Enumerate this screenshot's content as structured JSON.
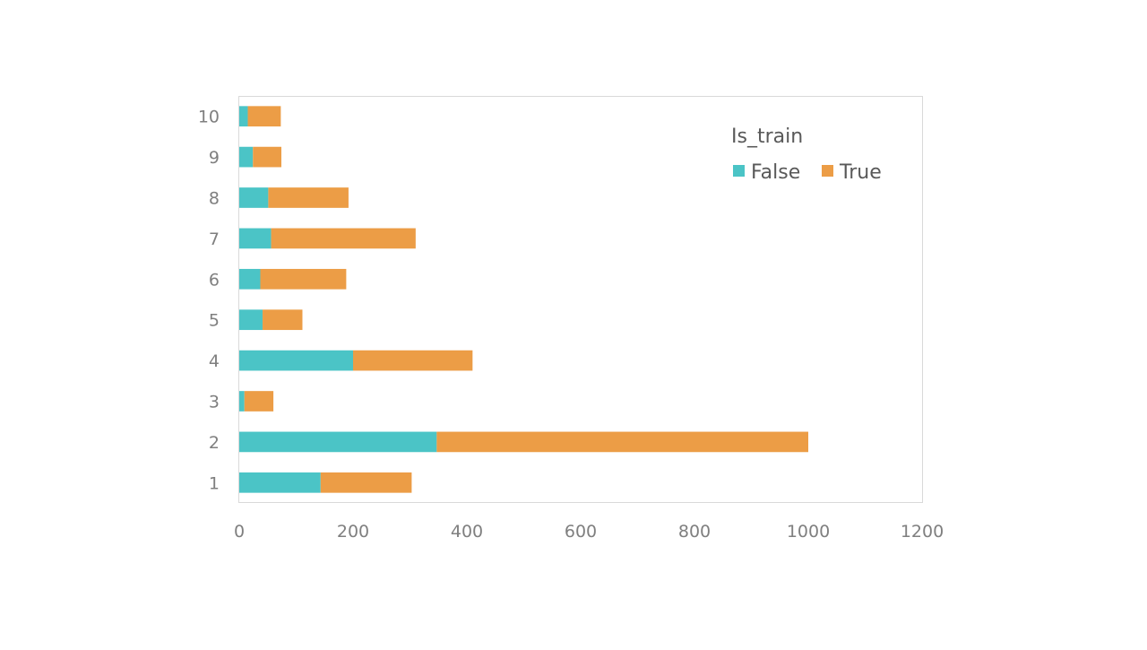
{
  "chart_data": {
    "type": "bar",
    "orientation": "horizontal",
    "stacked": true,
    "title": "",
    "xlabel": "",
    "ylabel": "",
    "categories": [
      "1",
      "2",
      "3",
      "4",
      "5",
      "6",
      "7",
      "8",
      "9",
      "10"
    ],
    "series": [
      {
        "name": "False",
        "color": "#4bc4c6",
        "values": [
          143,
          347,
          9,
          200,
          41,
          37,
          56,
          51,
          24,
          15
        ]
      },
      {
        "name": "True",
        "color": "#ec9d46",
        "values": [
          160,
          653,
          51,
          210,
          70,
          151,
          254,
          141,
          50,
          58
        ]
      }
    ],
    "xlim": [
      0,
      1200
    ],
    "xticks": [
      "0",
      "200",
      "400",
      "600",
      "800",
      "1000",
      "1200"
    ],
    "grid": false,
    "legend": {
      "title": "Is_train",
      "position": "top-right",
      "entries": [
        "False",
        "True"
      ]
    },
    "colors": {
      "False": "#4bc4c6",
      "True": "#ec9d46",
      "frame": "#d9d9d9",
      "tick_text": "#7f7f7f",
      "legend_text": "#595959"
    }
  }
}
